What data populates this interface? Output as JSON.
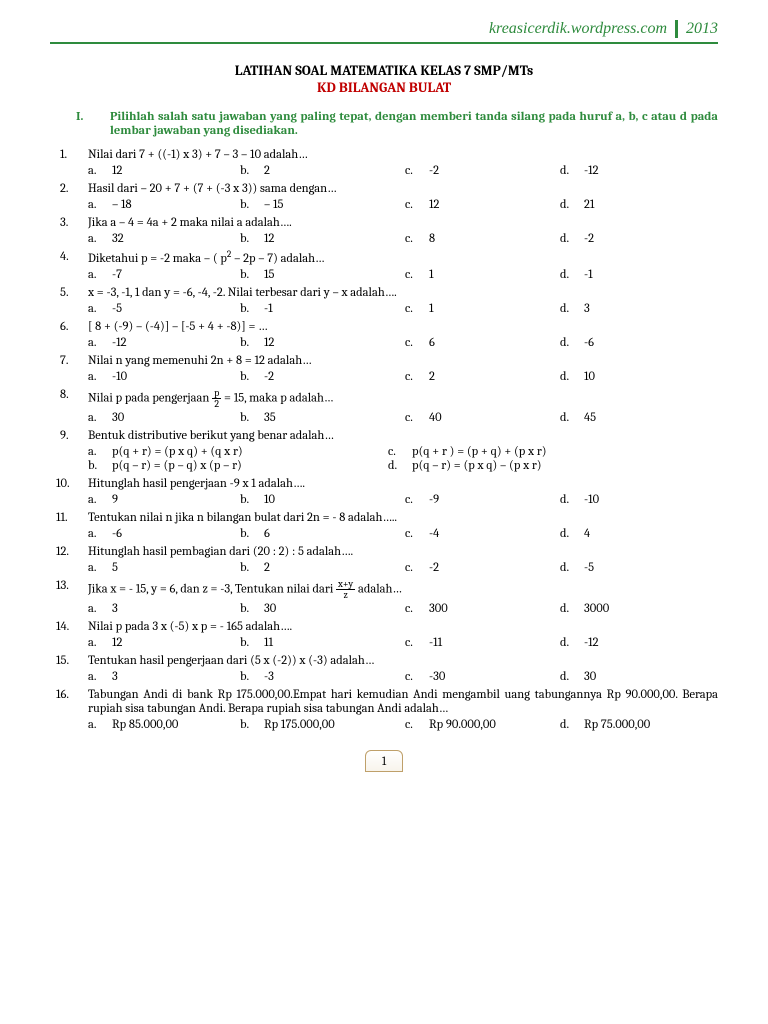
{
  "header": {
    "site": "kreasicerdik.wordpress.com",
    "year": "2013"
  },
  "title": {
    "line1": "LATIHAN SOAL MATEMATIKA KELAS 7 SMP/MTs",
    "line2": "KD BILANGAN BULAT"
  },
  "instruction": {
    "num": "I.",
    "text": "Pilihlah salah satu jawaban yang paling tepat, dengan memberi  tanda silang pada huruf a, b, c atau d pada lembar jawaban yang disediakan."
  },
  "questions": [
    {
      "n": "1.",
      "q": "Nilai dari 7 + ((-1) x 3) + 7 – 3 – 10 adalah…",
      "a": "12",
      "b": "2",
      "c": "-2",
      "d": "-12"
    },
    {
      "n": "2.",
      "q": "Hasil dari – 20 + 7 + (7 + (-3 x 3)) sama dengan…",
      "a": "– 18",
      "b": "– 15",
      "c": "12",
      "d": "21"
    },
    {
      "n": "3.",
      "q": "Jika a – 4 = 4a + 2 maka nilai a adalah….",
      "a": "32",
      "b": "12",
      "c": "8",
      "d": "-2"
    },
    {
      "n": "4.",
      "q": "Diketahui p = -2 maka – ( p² – 2p – 7) adalah…",
      "a": "-7",
      "b": "15",
      "c": "1",
      "d": "-1"
    },
    {
      "n": "5.",
      "q": "x = -3, -1, 1 dan y = -6, -4, -2. Nilai terbesar dari y – x adalah….",
      "a": "-5",
      "b": "-1",
      "c": "1",
      "d": "3"
    },
    {
      "n": "6.",
      "q": "[ 8 + (-9) – (-4)] –  [-5 + 4 + -8)] = …",
      "a": "-12",
      "b": "12",
      "c": "6",
      "d": "-6"
    },
    {
      "n": "7.",
      "q": "Nilai n yang memenuhi 2n + 8 = 12 adalah…",
      "a": "-10",
      "b": "-2",
      "c": "2",
      "d": "10"
    },
    {
      "n": "8.",
      "q": "__FRAC_P__",
      "a": "30",
      "b": "35",
      "c": "40",
      "d": "45"
    },
    {
      "n": "9.",
      "q": "Bentuk distributive berikut yang benar adalah…",
      "wide": true,
      "oa": "p(q + r) = (p x q) + (q x r)",
      "oc": "p(q + r ) = (p + q) + (p x r)",
      "ob": "p(q – r) = (p – q) x (p – r)",
      "od": "p(q – r) = (p x q) – (p x r)"
    },
    {
      "n": "10.",
      "q": "Hitunglah hasil pengerjaan -9 x 1 adalah….",
      "a": "9",
      "b": "10",
      "c": "-9",
      "d": "-10"
    },
    {
      "n": "11.",
      "q": "Tentukan nilai n jika n bilangan bulat dari 2n = - 8 adalah…..",
      "a": "-6",
      "b": "6",
      "c": "-4",
      "d": "4"
    },
    {
      "n": "12.",
      "q": "Hitunglah hasil pembagian dari (20 : 2) : 5 adalah….",
      "a": "5",
      "b": "2",
      "c": "-2",
      "d": "-5"
    },
    {
      "n": "13.",
      "q": "__FRAC_XYZ__",
      "a": "3",
      "b": "30",
      "c": "300",
      "d": "3000"
    },
    {
      "n": "14.",
      "q": "Nilai p pada 3 x (-5) x p = - 165 adalah….",
      "a": "12",
      "b": "11",
      "c": "-11",
      "d": "-12"
    },
    {
      "n": "15.",
      "q": "Tentukan hasil pengerjaan dari (5 x (-2)) x (-3) adalah…",
      "a": "3",
      "b": "-3",
      "c": "-30",
      "d": "30"
    },
    {
      "n": "16.",
      "q": "Tabungan Andi di bank Rp 175.000,00.Empat hari kemudian Andi mengambil uang tabungannya  Rp 90.000,00. Berapa rupiah sisa tabungan Andi. Berapa rupiah sisa tabungan Andi adalah…",
      "a": "Rp 85.000,00",
      "b": "Rp 175.000,00",
      "c": "Rp 90.000,00",
      "d": "Rp 75.000,00"
    }
  ],
  "pagenum": "1",
  "frac_p": {
    "before": "Nilai p pada pengerjaan ",
    "num": "p",
    "den": "2",
    "after": " = 15, maka p adalah…"
  },
  "frac_xyz": {
    "before": "Jika x = - 15, y = 6, dan z = -3, Tentukan nilai dari ",
    "num": "x+y",
    "den": "z",
    "after": " adalah…"
  }
}
